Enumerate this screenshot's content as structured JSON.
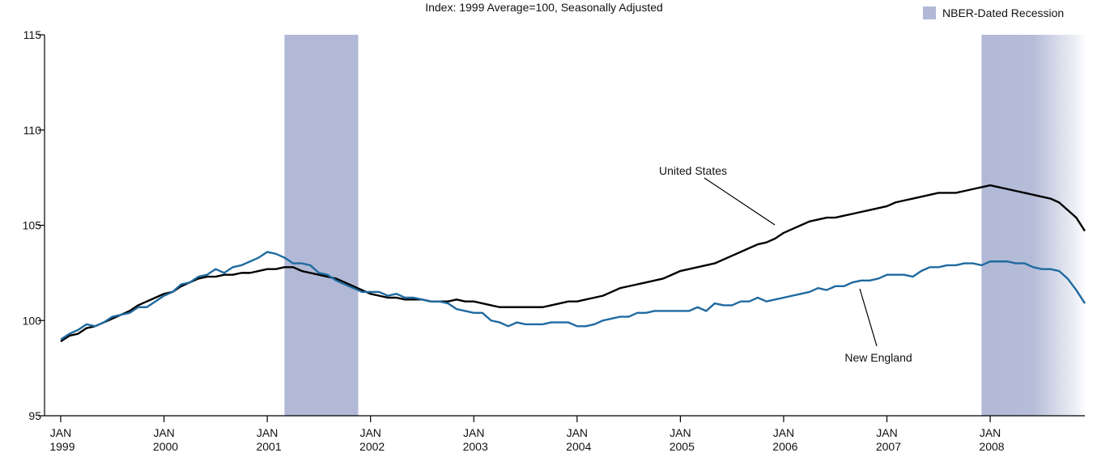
{
  "chart_data": {
    "type": "line",
    "subtitle": "Index: 1999 Average=100, Seasonally Adjusted",
    "x": [
      "1999-01",
      "1999-02",
      "1999-03",
      "1999-04",
      "1999-05",
      "1999-06",
      "1999-07",
      "1999-08",
      "1999-09",
      "1999-10",
      "1999-11",
      "1999-12",
      "2000-01",
      "2000-02",
      "2000-03",
      "2000-04",
      "2000-05",
      "2000-06",
      "2000-07",
      "2000-08",
      "2000-09",
      "2000-10",
      "2000-11",
      "2000-12",
      "2001-01",
      "2001-02",
      "2001-03",
      "2001-04",
      "2001-05",
      "2001-06",
      "2001-07",
      "2001-08",
      "2001-09",
      "2001-10",
      "2001-11",
      "2001-12",
      "2002-01",
      "2002-02",
      "2002-03",
      "2002-04",
      "2002-05",
      "2002-06",
      "2002-07",
      "2002-08",
      "2002-09",
      "2002-10",
      "2002-11",
      "2002-12",
      "2003-01",
      "2003-02",
      "2003-03",
      "2003-04",
      "2003-05",
      "2003-06",
      "2003-07",
      "2003-08",
      "2003-09",
      "2003-10",
      "2003-11",
      "2003-12",
      "2004-01",
      "2004-02",
      "2004-03",
      "2004-04",
      "2004-05",
      "2004-06",
      "2004-07",
      "2004-08",
      "2004-09",
      "2004-10",
      "2004-11",
      "2004-12",
      "2005-01",
      "2005-02",
      "2005-03",
      "2005-04",
      "2005-05",
      "2005-06",
      "2005-07",
      "2005-08",
      "2005-09",
      "2005-10",
      "2005-11",
      "2005-12",
      "2006-01",
      "2006-02",
      "2006-03",
      "2006-04",
      "2006-05",
      "2006-06",
      "2006-07",
      "2006-08",
      "2006-09",
      "2006-10",
      "2006-11",
      "2006-12",
      "2007-01",
      "2007-02",
      "2007-03",
      "2007-04",
      "2007-05",
      "2007-06",
      "2007-07",
      "2007-08",
      "2007-09",
      "2007-10",
      "2007-11",
      "2007-12",
      "2008-01",
      "2008-02",
      "2008-03",
      "2008-04",
      "2008-05",
      "2008-06",
      "2008-07",
      "2008-08",
      "2008-09",
      "2008-10",
      "2008-11",
      "2008-12"
    ],
    "series": [
      {
        "name": "United States",
        "color": "#000000",
        "values": [
          98.9,
          99.2,
          99.3,
          99.6,
          99.7,
          99.9,
          100.1,
          100.3,
          100.5,
          100.8,
          101.0,
          101.2,
          101.4,
          101.5,
          101.8,
          102.0,
          102.2,
          102.3,
          102.3,
          102.4,
          102.4,
          102.5,
          102.5,
          102.6,
          102.7,
          102.7,
          102.8,
          102.8,
          102.6,
          102.5,
          102.4,
          102.3,
          102.2,
          102.0,
          101.8,
          101.6,
          101.4,
          101.3,
          101.2,
          101.2,
          101.1,
          101.1,
          101.1,
          101.0,
          101.0,
          101.0,
          101.1,
          101.0,
          101.0,
          100.9,
          100.8,
          100.7,
          100.7,
          100.7,
          100.7,
          100.7,
          100.7,
          100.8,
          100.9,
          101.0,
          101.0,
          101.1,
          101.2,
          101.3,
          101.5,
          101.7,
          101.8,
          101.9,
          102.0,
          102.1,
          102.2,
          102.4,
          102.6,
          102.7,
          102.8,
          102.9,
          103.0,
          103.2,
          103.4,
          103.6,
          103.8,
          104.0,
          104.1,
          104.3,
          104.6,
          104.8,
          105.0,
          105.2,
          105.3,
          105.4,
          105.4,
          105.5,
          105.6,
          105.7,
          105.8,
          105.9,
          106.0,
          106.2,
          106.3,
          106.4,
          106.5,
          106.6,
          106.7,
          106.7,
          106.7,
          106.8,
          106.9,
          107.0,
          107.1,
          107.0,
          106.9,
          106.8,
          106.7,
          106.6,
          106.5,
          106.4,
          106.2,
          105.8,
          105.4,
          104.7
        ]
      },
      {
        "name": "New England",
        "color": "#1f6aa0",
        "values": [
          99.0,
          99.3,
          99.5,
          99.8,
          99.7,
          99.9,
          100.2,
          100.3,
          100.4,
          100.7,
          100.7,
          101.0,
          101.3,
          101.5,
          101.9,
          102.0,
          102.3,
          102.4,
          102.7,
          102.5,
          102.8,
          102.9,
          103.1,
          103.3,
          103.6,
          103.5,
          103.3,
          103.0,
          103.0,
          102.9,
          102.5,
          102.4,
          102.1,
          101.9,
          101.7,
          101.5,
          101.5,
          101.5,
          101.3,
          101.4,
          101.2,
          101.2,
          101.1,
          101.0,
          101.0,
          100.9,
          100.6,
          100.5,
          100.4,
          100.4,
          100.0,
          99.9,
          99.7,
          99.9,
          99.8,
          99.8,
          99.8,
          99.9,
          99.9,
          99.9,
          99.7,
          99.7,
          99.8,
          100.0,
          100.1,
          100.2,
          100.2,
          100.4,
          100.4,
          100.5,
          100.5,
          100.5,
          100.5,
          100.5,
          100.7,
          100.5,
          100.9,
          100.8,
          100.8,
          101.0,
          101.0,
          101.2,
          101.0,
          101.1,
          101.2,
          101.3,
          101.4,
          101.5,
          101.7,
          101.6,
          101.8,
          101.8,
          102.0,
          102.1,
          102.1,
          102.2,
          102.4,
          102.4,
          102.4,
          102.3,
          102.6,
          102.8,
          102.8,
          102.9,
          102.9,
          103.0,
          103.0,
          102.9,
          103.1,
          103.1,
          103.1,
          103.0,
          103.0,
          102.8,
          102.7,
          102.7,
          102.6,
          102.2,
          101.6,
          100.9
        ]
      }
    ],
    "recessions": {
      "name": "NBER-Dated Recession",
      "color": "#b1b9d6",
      "periods": [
        {
          "start": "2001-03",
          "end": "2001-11"
        },
        {
          "start": "2007-12",
          "end": "2008-12"
        }
      ]
    },
    "xlim": [
      "1999-01",
      "2008-12"
    ],
    "xticks": [
      {
        "value": "1999-01",
        "label": "JAN 1999"
      },
      {
        "value": "2000-01",
        "label": "JAN 2000"
      },
      {
        "value": "2001-01",
        "label": "JAN 2001"
      },
      {
        "value": "2002-01",
        "label": "JAN 2002"
      },
      {
        "value": "2003-01",
        "label": "JAN 2003"
      },
      {
        "value": "2004-01",
        "label": "JAN 2004"
      },
      {
        "value": "2005-01",
        "label": "JAN 2005"
      },
      {
        "value": "2006-01",
        "label": "JAN 2006"
      },
      {
        "value": "2007-01",
        "label": "JAN 2007"
      },
      {
        "value": "2008-01",
        "label": "JAN 2008"
      }
    ],
    "ylim": [
      95,
      115
    ],
    "yticks": [
      95,
      100,
      105,
      110,
      115
    ],
    "grid": false
  }
}
